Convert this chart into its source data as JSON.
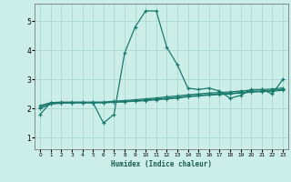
{
  "xlabel": "Humidex (Indice chaleur)",
  "bg_color": "#cceee8",
  "line_color": "#1a7a6e",
  "grid_color": "#aad8d0",
  "xlim": [
    -0.5,
    23.5
  ],
  "ylim": [
    0.6,
    5.6
  ],
  "yticks": [
    1,
    2,
    3,
    4,
    5
  ],
  "xticks": [
    0,
    1,
    2,
    3,
    4,
    5,
    6,
    7,
    8,
    9,
    10,
    11,
    12,
    13,
    14,
    15,
    16,
    17,
    18,
    19,
    20,
    21,
    22,
    23
  ],
  "series_main": [
    1.8,
    2.2,
    2.2,
    2.2,
    2.2,
    2.2,
    1.5,
    1.8,
    3.9,
    4.8,
    5.35,
    5.35,
    4.1,
    3.5,
    2.7,
    2.65,
    2.7,
    2.6,
    2.35,
    2.45,
    2.65,
    2.65,
    2.5,
    3.0
  ],
  "series_flat": [
    [
      2.1,
      2.2,
      2.22,
      2.22,
      2.22,
      2.22,
      2.22,
      2.25,
      2.27,
      2.3,
      2.33,
      2.36,
      2.4,
      2.43,
      2.47,
      2.5,
      2.53,
      2.55,
      2.57,
      2.6,
      2.63,
      2.65,
      2.67,
      2.7
    ],
    [
      2.05,
      2.18,
      2.2,
      2.2,
      2.2,
      2.2,
      2.2,
      2.22,
      2.24,
      2.26,
      2.29,
      2.32,
      2.35,
      2.38,
      2.42,
      2.45,
      2.48,
      2.5,
      2.52,
      2.55,
      2.58,
      2.6,
      2.62,
      2.65
    ],
    [
      2.0,
      2.15,
      2.18,
      2.2,
      2.2,
      2.2,
      2.2,
      2.21,
      2.23,
      2.25,
      2.27,
      2.3,
      2.33,
      2.36,
      2.4,
      2.43,
      2.46,
      2.48,
      2.5,
      2.53,
      2.56,
      2.58,
      2.6,
      2.62
    ]
  ]
}
